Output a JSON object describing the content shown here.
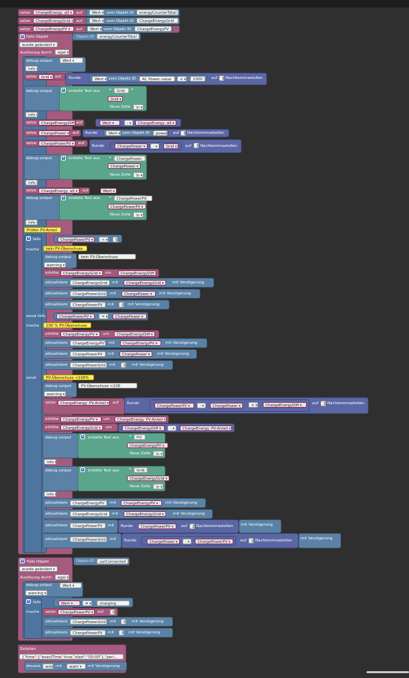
{
  "kw": {
    "setze": "setze",
    "auf": "auf",
    "wert": "Wert",
    "vom_objekt_id": "vom Objekt ID",
    "falls_objekt": "Falls Objekt",
    "objekt_id": "Objekt ID",
    "wurde_geaendert": "wurde geändert",
    "ausloesung_durch": "Auslösung durch",
    "egal": "egal",
    "debug_output": "debug output",
    "info": "info",
    "warning": "warning",
    "runde": "Runde",
    "auf_nk": "auf",
    "nachkommastellen": "Nachkommastellen",
    "erstelle_text_aus": "erstelle Text aus",
    "neue_zeile": "Neue Zeile",
    "ln": "\\n",
    "falls": "falls",
    "mache": "mache",
    "sonst_falls": "sonst falls",
    "sonst": "sonst",
    "erhoehe": "erhöhe",
    "um": "um",
    "aktualisiere": "aktualisiere",
    "mit": "mit",
    "mit_verzoegerung": "mit Verzögerung",
    "minus": "-",
    "lt": "<",
    "times": "×",
    "neq": "≠",
    "eq": "=",
    "zeitplan": "Zeitplan",
    "steuere": "steuere",
    "wahr": "wahr",
    "quote": "❝"
  },
  "top": {
    "vars": [
      "ChargeEnergy_alt",
      "ChargeEnergyGrid",
      "ChargeEnergyPV"
    ],
    "ids": [
      "energyCounterTotal",
      "ChargeEnergyGrid",
      "ChargeEnergyPV"
    ]
  },
  "trigger1": {
    "id": "energyCounterTotal"
  },
  "vals": {
    "grid_var": "Grid",
    "ac_power": "AC Power value",
    "n1000": "1000",
    "n3": "3",
    "n2": "2",
    "n1": "1",
    "n0": "0",
    "grid_txt": "Grid:",
    "grid_v": "Grid",
    "cediff": "ChargeEnergyDiff",
    "cealt": "ChargeEnergy_alt",
    "power_id": "power",
    "cp": "ChargePower",
    "cpv": "ChargePowerPV",
    "cp_txt": "ChargePower:",
    "cpv_txt": "ChargePowerPV:",
    "ceg": "ChargeEnergyGrid",
    "cpg": "ChargePowerGrid",
    "cepv": "ChargeEnergyPV",
    "cepa": "ChargeEnergy_PV-Anteil",
    "pv_txt": "PV:"
  },
  "comments": {
    "pruefen": "Prüfen PV-Anteil",
    "kein": "kein PV-Überschuss",
    "voll": "100 % PV-Überschuss",
    "lt100": "PV-Überschuss <100%",
    "lt100_dbg": "PV-Überschuss <100"
  },
  "trigger2": {
    "id": "carConnected",
    "charging": "charging"
  },
  "schedule": {
    "json": "{\"time\":{\"exactTime\":true,\"start\":\"00:00\"},\"peri...",
    "target": "wole"
  }
}
